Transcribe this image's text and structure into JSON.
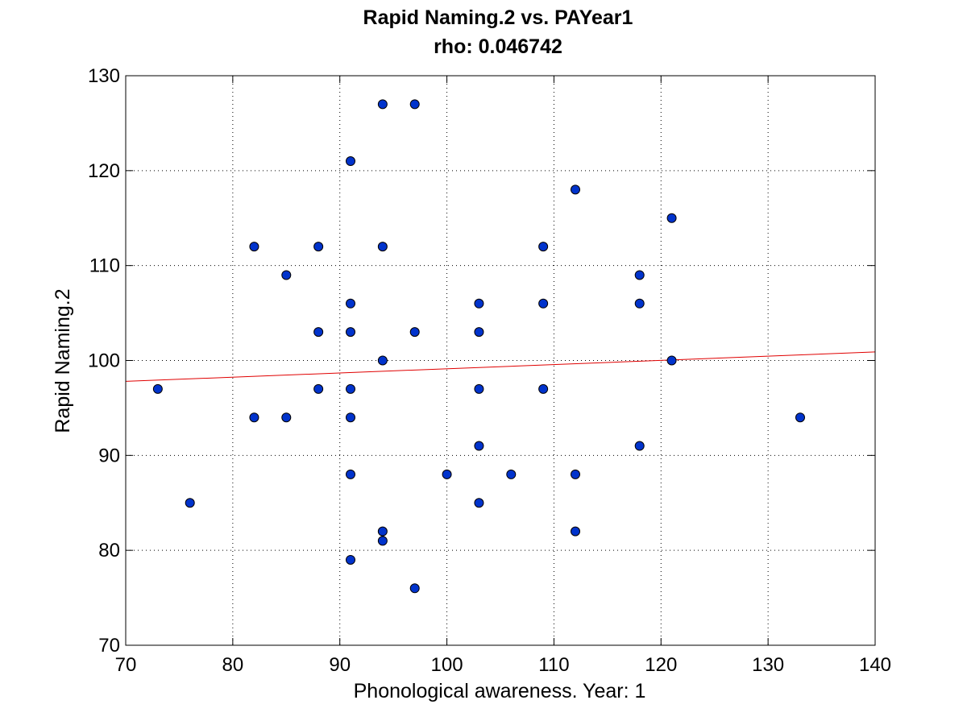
{
  "chart_data": {
    "type": "scatter",
    "title": "Rapid Naming.2 vs. PAYear1",
    "subtitle": "rho: 0.046742",
    "xlabel": "Phonological awareness. Year: 1",
    "ylabel": "Rapid Naming.2",
    "xlim": [
      70,
      140
    ],
    "ylim": [
      70,
      130
    ],
    "xticks": [
      70,
      80,
      90,
      100,
      110,
      120,
      130,
      140
    ],
    "yticks": [
      70,
      80,
      90,
      100,
      110,
      120,
      130
    ],
    "grid": true,
    "point_color": "#0033cc",
    "fit_line_color": "#e00000",
    "fit_line": {
      "x": [
        70,
        140
      ],
      "y": [
        97.8,
        100.9
      ]
    },
    "points": [
      {
        "x": 73,
        "y": 97
      },
      {
        "x": 76,
        "y": 85
      },
      {
        "x": 82,
        "y": 112
      },
      {
        "x": 82,
        "y": 94
      },
      {
        "x": 85,
        "y": 109
      },
      {
        "x": 85,
        "y": 94
      },
      {
        "x": 88,
        "y": 112
      },
      {
        "x": 88,
        "y": 103
      },
      {
        "x": 88,
        "y": 97
      },
      {
        "x": 91,
        "y": 121
      },
      {
        "x": 91,
        "y": 106
      },
      {
        "x": 91,
        "y": 103
      },
      {
        "x": 91,
        "y": 97
      },
      {
        "x": 91,
        "y": 94
      },
      {
        "x": 91,
        "y": 88
      },
      {
        "x": 91,
        "y": 79
      },
      {
        "x": 94,
        "y": 127
      },
      {
        "x": 94,
        "y": 112
      },
      {
        "x": 94,
        "y": 100
      },
      {
        "x": 94,
        "y": 82
      },
      {
        "x": 94,
        "y": 81
      },
      {
        "x": 97,
        "y": 127
      },
      {
        "x": 97,
        "y": 103
      },
      {
        "x": 97,
        "y": 76
      },
      {
        "x": 100,
        "y": 88
      },
      {
        "x": 103,
        "y": 106
      },
      {
        "x": 103,
        "y": 103
      },
      {
        "x": 103,
        "y": 97
      },
      {
        "x": 103,
        "y": 91
      },
      {
        "x": 103,
        "y": 85
      },
      {
        "x": 106,
        "y": 88
      },
      {
        "x": 109,
        "y": 112
      },
      {
        "x": 109,
        "y": 106
      },
      {
        "x": 109,
        "y": 97
      },
      {
        "x": 112,
        "y": 118
      },
      {
        "x": 112,
        "y": 88
      },
      {
        "x": 112,
        "y": 82
      },
      {
        "x": 118,
        "y": 109
      },
      {
        "x": 118,
        "y": 106
      },
      {
        "x": 118,
        "y": 91
      },
      {
        "x": 121,
        "y": 115
      },
      {
        "x": 121,
        "y": 100
      },
      {
        "x": 133,
        "y": 94
      }
    ]
  }
}
